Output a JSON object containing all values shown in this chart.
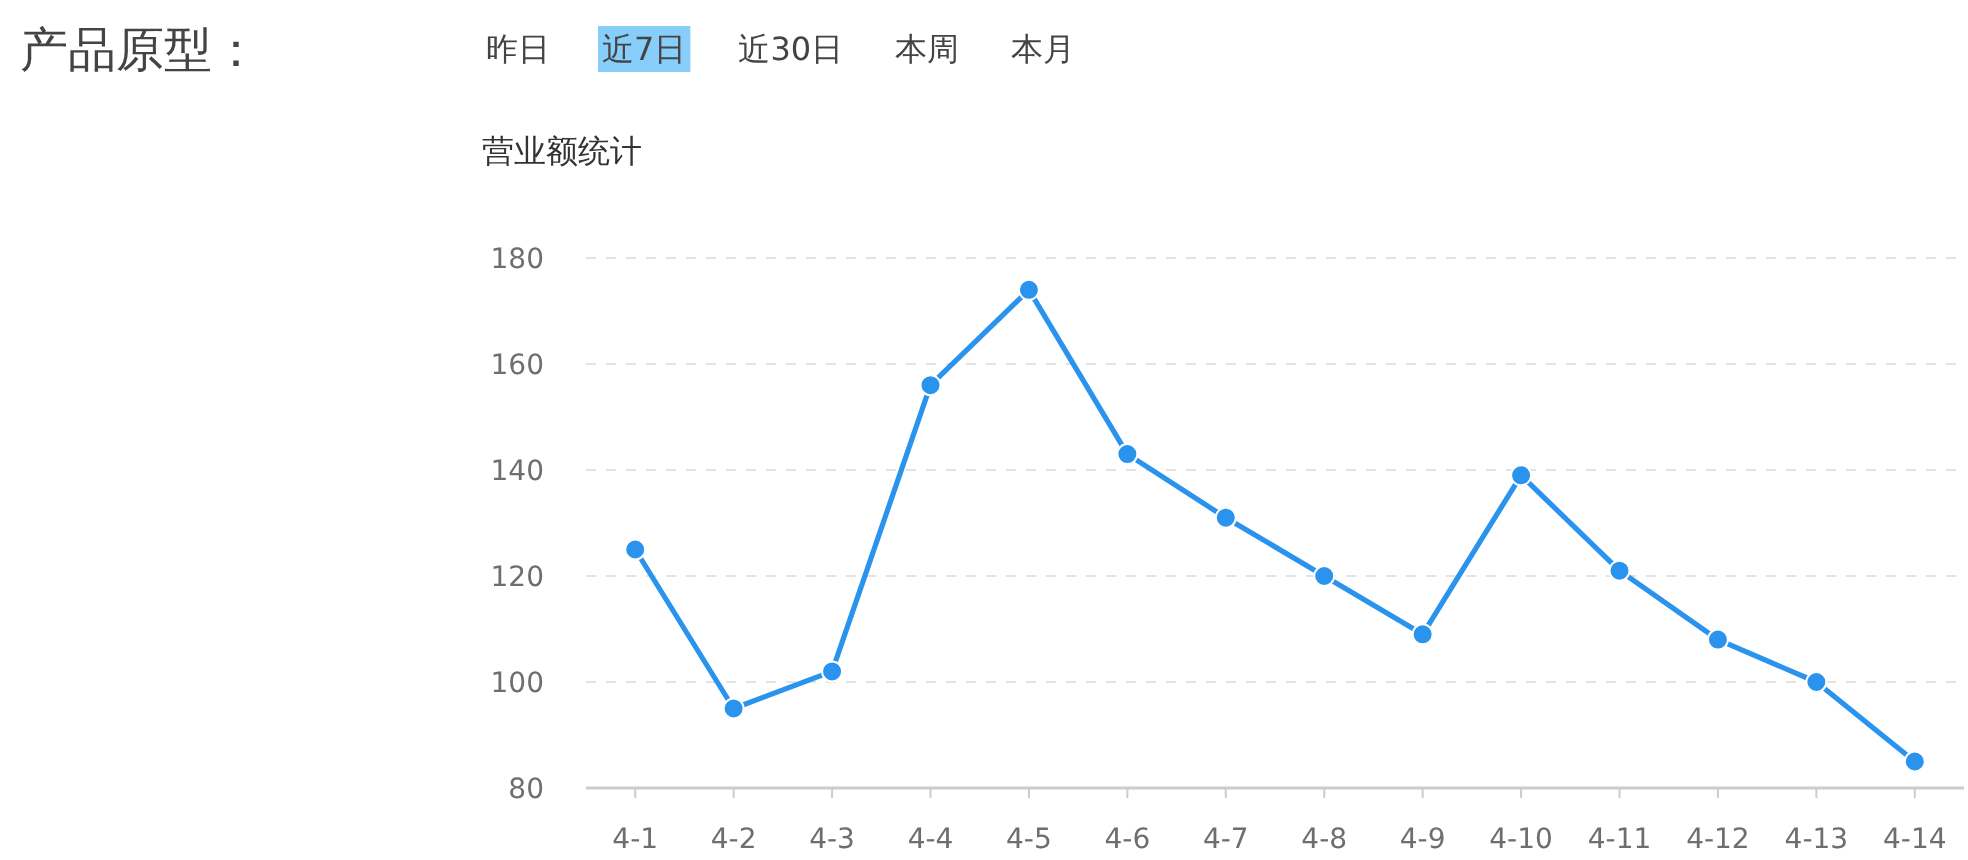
{
  "chart_data": {
    "type": "line",
    "title": "营业额统计",
    "annotations": [
      "产品原型：",
      "昨日",
      "近7日",
      "近30日",
      "本周",
      "本月"
    ],
    "categories": [
      "4-1",
      "4-2",
      "4-3",
      "4-4",
      "4-5",
      "4-6",
      "4-7",
      "4-8",
      "4-9",
      "4-10",
      "4-11",
      "4-12",
      "4-13",
      "4-14"
    ],
    "values": [
      125,
      95,
      102,
      156,
      174,
      143,
      131,
      120,
      109,
      139,
      121,
      108,
      100,
      85
    ],
    "color": "#2a93ee",
    "ylim": [
      80,
      180
    ],
    "yticks": [
      80,
      100,
      120,
      140,
      160,
      180
    ],
    "grid": "y",
    "marker": "circle",
    "line_style": "solid"
  }
}
